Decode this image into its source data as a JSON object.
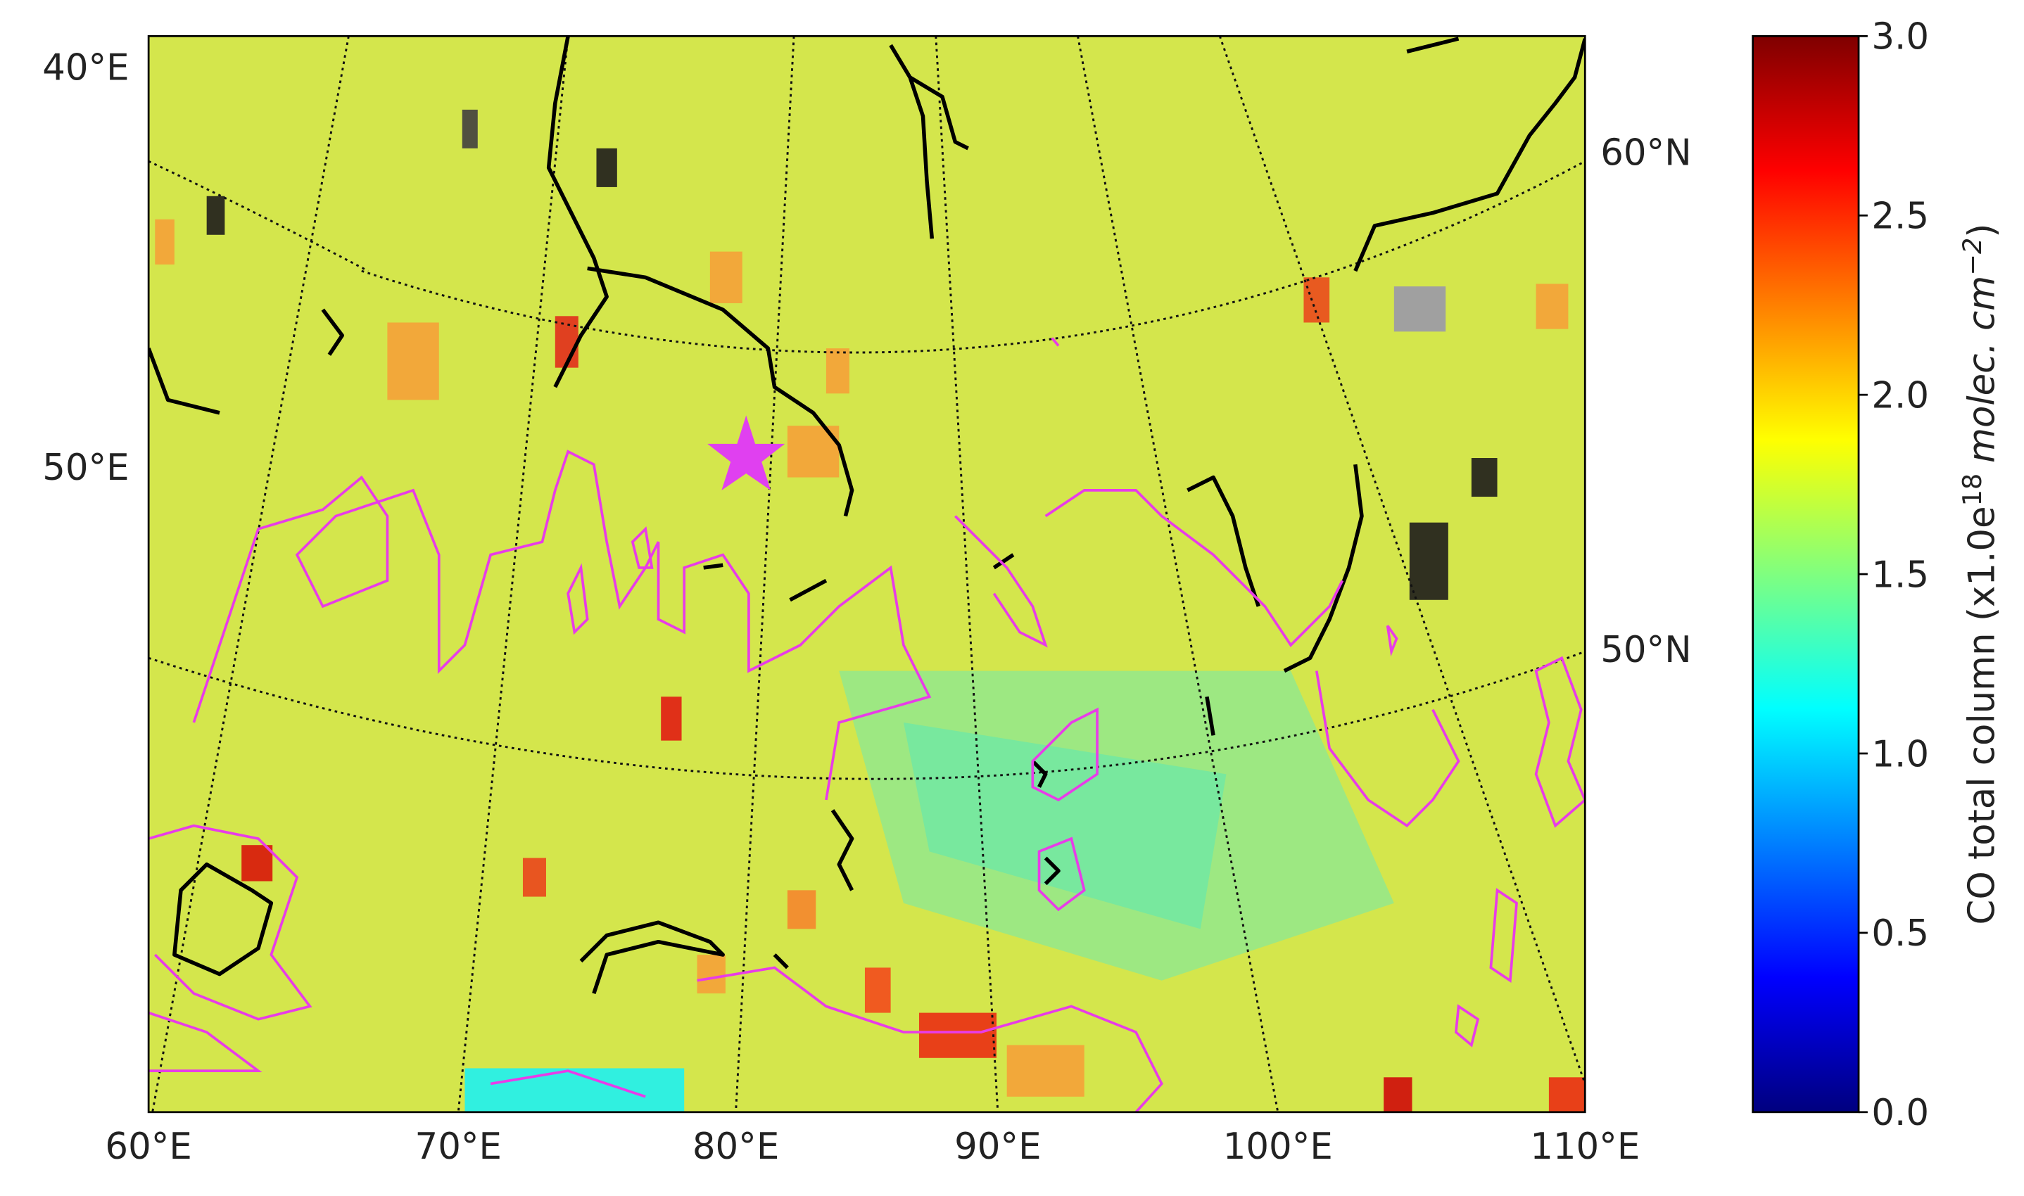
{
  "map": {
    "lon_labels_left": [
      "40°E",
      "50°E"
    ],
    "lat_labels_right": [
      "60°N",
      "50°N"
    ],
    "lon_labels_bottom": [
      "60°E",
      "70°E",
      "80°E",
      "90°E",
      "100°E",
      "110°E"
    ],
    "colorbar": {
      "colormap": "jet",
      "lim": [
        0,
        3
      ],
      "ticks": [
        {
          "value": 0,
          "label": "0.0"
        },
        {
          "value": 0.5,
          "label": "0.5"
        },
        {
          "value": 1,
          "label": "1.0"
        },
        {
          "value": 1.5,
          "label": "1.5"
        },
        {
          "value": 2,
          "label": "2.0"
        },
        {
          "value": 2.5,
          "label": "2.5"
        },
        {
          "value": 3,
          "label": "3.0"
        }
      ],
      "label": {
        "text": "CO total column (x1.0e",
        "exponent": "18",
        "unit": "molec. cm",
        "unit_exponent": "−2",
        "close": ")"
      }
    }
  }
}
